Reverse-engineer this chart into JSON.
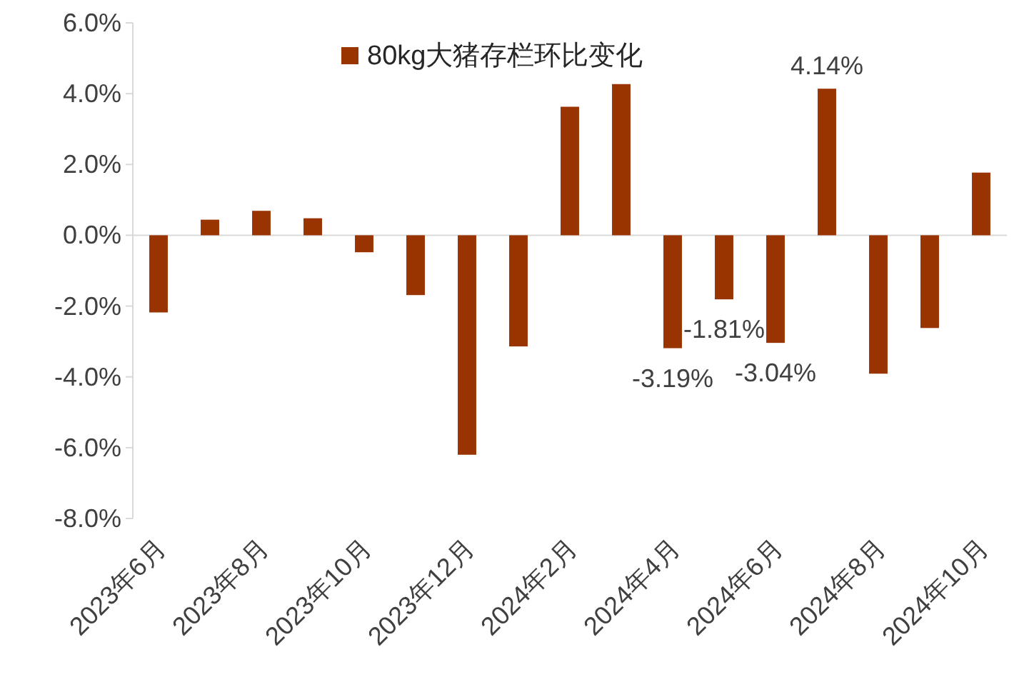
{
  "chart_data": {
    "type": "bar",
    "categories": [
      "2023年6月",
      null,
      "2023年8月",
      null,
      "2023年10月",
      null,
      "2023年12月",
      null,
      "2024年2月",
      null,
      "2024年4月",
      null,
      "2024年6月",
      null,
      "2024年8月",
      null,
      "2024年10月"
    ],
    "series": [
      {
        "name": "80kg大猪存栏环比变化",
        "color": "#993300",
        "values": [
          -2.18,
          0.44,
          0.69,
          0.48,
          -0.48,
          -1.69,
          -6.2,
          -3.14,
          3.63,
          4.27,
          -3.19,
          -1.81,
          -3.04,
          4.14,
          -3.91,
          -2.62,
          1.77
        ],
        "value_labels": [
          null,
          null,
          null,
          null,
          null,
          null,
          null,
          null,
          null,
          null,
          "-3.19%",
          "-1.81%",
          "-3.04%",
          "4.14%",
          null,
          null,
          null
        ]
      }
    ],
    "ylim": [
      -8,
      6
    ],
    "yticks": [
      {
        "value": -8,
        "label": "-8.0%"
      },
      {
        "value": -6,
        "label": "-6.0%"
      },
      {
        "value": -4,
        "label": "-4.0%"
      },
      {
        "value": -2,
        "label": "-2.0%"
      },
      {
        "value": 0,
        "label": "0.0%"
      },
      {
        "value": 2,
        "label": "2.0%"
      },
      {
        "value": 4,
        "label": "4.0%"
      },
      {
        "value": 6,
        "label": "6.0%"
      }
    ],
    "legend": "top"
  }
}
